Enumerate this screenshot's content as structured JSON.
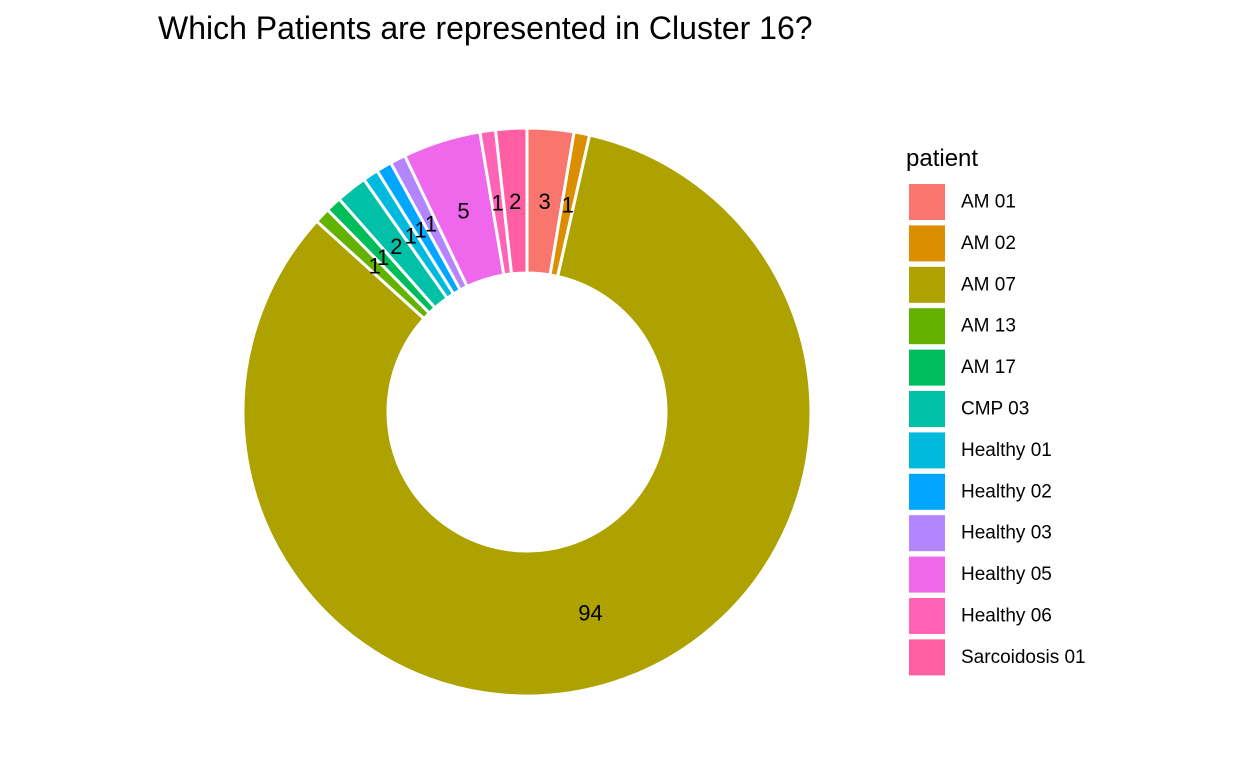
{
  "chart_data": {
    "type": "pie",
    "title": "Which Patients are represented in Cluster 16?",
    "legend_title": "patient",
    "legend_position": "right",
    "style": "donut",
    "slices": [
      {
        "label": "AM 01",
        "value": 3,
        "color": "#F8766D"
      },
      {
        "label": "AM 02",
        "value": 1,
        "color": "#DB8E00"
      },
      {
        "label": "AM 07",
        "value": 94,
        "color": "#AEA200"
      },
      {
        "label": "AM 13",
        "value": 1,
        "color": "#64B200"
      },
      {
        "label": "AM 17",
        "value": 1,
        "color": "#00BD5C"
      },
      {
        "label": "CMP 03",
        "value": 2,
        "color": "#00C1A7"
      },
      {
        "label": "Healthy 01",
        "value": 1,
        "color": "#00BADE"
      },
      {
        "label": "Healthy 02",
        "value": 1,
        "color": "#00A6FF"
      },
      {
        "label": "Healthy 03",
        "value": 1,
        "color": "#B385FF"
      },
      {
        "label": "Healthy 05",
        "value": 5,
        "color": "#EF67EB"
      },
      {
        "label": "Healthy 06",
        "value": 1,
        "color": "#FF63B6"
      },
      {
        "label": "Sarcoidosis 01",
        "value": 2,
        "color": "#FF5FA2"
      }
    ],
    "draw_order": [
      "AM 01",
      "AM 02",
      "AM 07",
      "AM 13",
      "AM 17",
      "CMP 03",
      "Healthy 01",
      "Healthy 02",
      "Healthy 03",
      "Healthy 05",
      "Healthy 06",
      "Sarcoidosis 01"
    ]
  }
}
